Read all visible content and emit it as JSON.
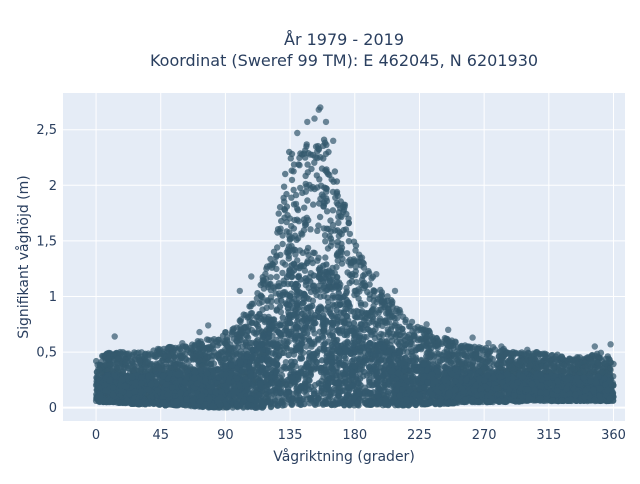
{
  "chart_data": {
    "type": "scatter",
    "title_line1": "År 1979 - 2019",
    "title_line2": "Koordinat (Sweref 99 TM): E 462045, N 6201930",
    "xlabel": "Vågriktning (grader)",
    "ylabel": "Signifikant våghöjd (m)",
    "xlim": [
      -23,
      368
    ],
    "ylim": [
      -0.12,
      2.83
    ],
    "xticks": [
      0,
      45,
      90,
      135,
      180,
      225,
      270,
      315,
      360
    ],
    "xtick_labels": [
      "0",
      "45",
      "90",
      "135",
      "180",
      "225",
      "270",
      "315",
      "360"
    ],
    "yticks": [
      0,
      0.5,
      1,
      1.5,
      2,
      2.5
    ],
    "ytick_labels": [
      "0",
      "0,5",
      "1",
      "1,5",
      "2",
      "2,5"
    ],
    "grid": true,
    "marker_color": "#34596e",
    "plot_bg": "#e5ecf6",
    "envelope": {
      "x": [
        0,
        10,
        20,
        30,
        40,
        50,
        60,
        70,
        80,
        90,
        100,
        110,
        115,
        120,
        125,
        130,
        135,
        140,
        145,
        150,
        155,
        160,
        165,
        170,
        175,
        180,
        190,
        200,
        210,
        220,
        230,
        240,
        250,
        260,
        270,
        280,
        290,
        300,
        310,
        320,
        330,
        340,
        350,
        360
      ],
      "upper": [
        0.45,
        0.5,
        0.5,
        0.5,
        0.52,
        0.55,
        0.55,
        0.6,
        0.62,
        0.68,
        0.8,
        1.0,
        1.15,
        1.35,
        1.6,
        2.0,
        2.4,
        2.3,
        2.35,
        2.45,
        2.65,
        2.4,
        2.2,
        1.95,
        1.75,
        1.5,
        1.25,
        1.05,
        0.9,
        0.78,
        0.7,
        0.65,
        0.6,
        0.55,
        0.55,
        0.55,
        0.5,
        0.5,
        0.5,
        0.48,
        0.46,
        0.45,
        0.5,
        0.45
      ],
      "lower": [
        0.05,
        0.05,
        0.04,
        0.03,
        0.03,
        0.02,
        0.02,
        0.01,
        0.0,
        0.0,
        0.0,
        0.0,
        0.0,
        0.0,
        0.01,
        0.02,
        0.02,
        0.02,
        0.02,
        0.02,
        0.02,
        0.02,
        0.02,
        0.02,
        0.02,
        0.02,
        0.02,
        0.02,
        0.02,
        0.02,
        0.03,
        0.03,
        0.04,
        0.05,
        0.05,
        0.05,
        0.05,
        0.06,
        0.06,
        0.06,
        0.06,
        0.06,
        0.06,
        0.06
      ]
    },
    "outliers": [
      {
        "x": 13,
        "y": 0.64
      },
      {
        "x": 147,
        "y": 2.57
      },
      {
        "x": 152,
        "y": 2.6
      },
      {
        "x": 155,
        "y": 2.68
      },
      {
        "x": 156,
        "y": 2.7
      },
      {
        "x": 160,
        "y": 2.57
      },
      {
        "x": 165,
        "y": 2.4
      },
      {
        "x": 140,
        "y": 2.47
      },
      {
        "x": 185,
        "y": 1.35
      },
      {
        "x": 195,
        "y": 1.2
      },
      {
        "x": 208,
        "y": 1.05
      },
      {
        "x": 230,
        "y": 0.75
      },
      {
        "x": 245,
        "y": 0.7
      },
      {
        "x": 262,
        "y": 0.63
      },
      {
        "x": 273,
        "y": 0.58
      },
      {
        "x": 282,
        "y": 0.55
      },
      {
        "x": 300,
        "y": 0.52
      },
      {
        "x": 347,
        "y": 0.55
      },
      {
        "x": 358,
        "y": 0.57
      },
      {
        "x": 72,
        "y": 0.68
      },
      {
        "x": 78,
        "y": 0.74
      },
      {
        "x": 100,
        "y": 1.05
      },
      {
        "x": 108,
        "y": 1.18
      },
      {
        "x": 60,
        "y": 0.58
      }
    ]
  }
}
